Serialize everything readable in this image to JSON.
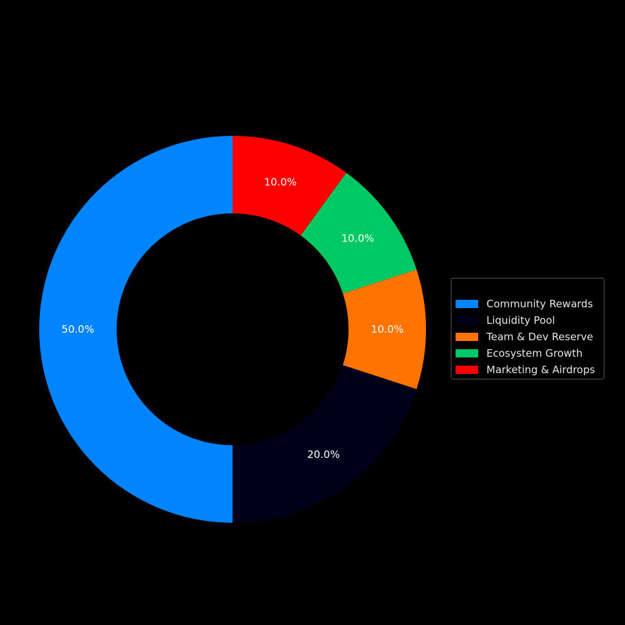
{
  "chart_data": {
    "type": "pie",
    "donut": true,
    "title": "",
    "labels": [
      "Community Rewards",
      "Liquidity Pool",
      "Team & Dev Reserve",
      "Ecosystem Growth",
      "Marketing & Airdrops"
    ],
    "values": [
      50,
      20,
      10,
      10,
      10
    ],
    "percent_labels": [
      "50.0%",
      "20.0%",
      "10.0%",
      "10.0%",
      "10.0%"
    ],
    "colors": [
      "#0084ff",
      "#00001a",
      "#ff7300",
      "#00c864",
      "#ff0000"
    ],
    "start_angle_deg": 90,
    "direction": "counterclockwise",
    "legend_position": "right",
    "background": "#000000"
  }
}
